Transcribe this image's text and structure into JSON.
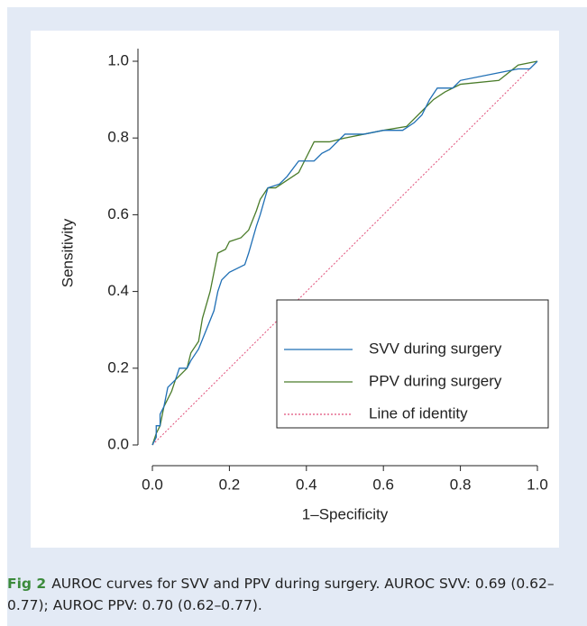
{
  "chart_data": {
    "type": "line",
    "xlabel": "1–Specificity",
    "ylabel": "Sensitivity",
    "xlim": [
      0,
      1
    ],
    "ylim": [
      0,
      1
    ],
    "xticks": [
      {
        "value": 0,
        "label": "0.0"
      },
      0.2,
      0.4,
      0.6,
      0.8,
      {
        "value": 1,
        "label": "1.0"
      }
    ],
    "yticks": [
      {
        "value": 0,
        "label": "0.0"
      },
      0.2,
      0.4,
      0.6,
      0.8,
      {
        "value": 1,
        "label": "1.0"
      }
    ],
    "legend": "lower right",
    "series": [
      {
        "name": "SVV during surgery",
        "color": "#1f6fb5",
        "style": "solid",
        "x": [
          0,
          0.01,
          0.01,
          0.02,
          0.02,
          0.03,
          0.04,
          0.06,
          0.07,
          0.09,
          0.1,
          0.12,
          0.14,
          0.16,
          0.17,
          0.18,
          0.2,
          0.22,
          0.24,
          0.25,
          0.27,
          0.28,
          0.3,
          0.33,
          0.35,
          0.38,
          0.42,
          0.44,
          0.46,
          0.5,
          0.55,
          0.6,
          0.65,
          0.68,
          0.7,
          0.72,
          0.74,
          0.78,
          0.8,
          0.9,
          0.95,
          0.98,
          1
        ],
        "values": [
          0,
          0.02,
          0.05,
          0.05,
          0.08,
          0.1,
          0.15,
          0.17,
          0.2,
          0.2,
          0.22,
          0.25,
          0.3,
          0.35,
          0.4,
          0.43,
          0.45,
          0.46,
          0.47,
          0.5,
          0.57,
          0.6,
          0.67,
          0.68,
          0.7,
          0.74,
          0.74,
          0.76,
          0.77,
          0.81,
          0.81,
          0.82,
          0.82,
          0.84,
          0.86,
          0.9,
          0.93,
          0.93,
          0.95,
          0.97,
          0.98,
          0.98,
          1
        ]
      },
      {
        "name": "PPV during surgery",
        "color": "#4a7c2a",
        "style": "solid",
        "x": [
          0,
          0.01,
          0.02,
          0.03,
          0.05,
          0.06,
          0.08,
          0.09,
          0.1,
          0.12,
          0.13,
          0.15,
          0.16,
          0.17,
          0.19,
          0.2,
          0.23,
          0.25,
          0.27,
          0.28,
          0.3,
          0.32,
          0.35,
          0.38,
          0.4,
          0.42,
          0.46,
          0.5,
          0.55,
          0.6,
          0.66,
          0.7,
          0.73,
          0.76,
          0.8,
          0.9,
          0.95,
          1
        ],
        "values": [
          0,
          0.03,
          0.05,
          0.1,
          0.14,
          0.17,
          0.19,
          0.2,
          0.24,
          0.27,
          0.33,
          0.4,
          0.45,
          0.5,
          0.51,
          0.53,
          0.54,
          0.56,
          0.61,
          0.64,
          0.67,
          0.67,
          0.69,
          0.71,
          0.75,
          0.79,
          0.79,
          0.8,
          0.81,
          0.82,
          0.83,
          0.87,
          0.9,
          0.92,
          0.94,
          0.95,
          0.99,
          1
        ]
      },
      {
        "name": "Line of identity",
        "color": "#e0507a",
        "style": "dotted",
        "x": [
          0,
          1
        ],
        "values": [
          0,
          1
        ]
      }
    ]
  },
  "caption": {
    "label": "Fig 2",
    "text": "AUROC curves for SVV and PPV during surgery. AUROC SVV: 0.69 (0.62–0.77); AUROC PPV: 0.70 (0.62–0.77)."
  }
}
